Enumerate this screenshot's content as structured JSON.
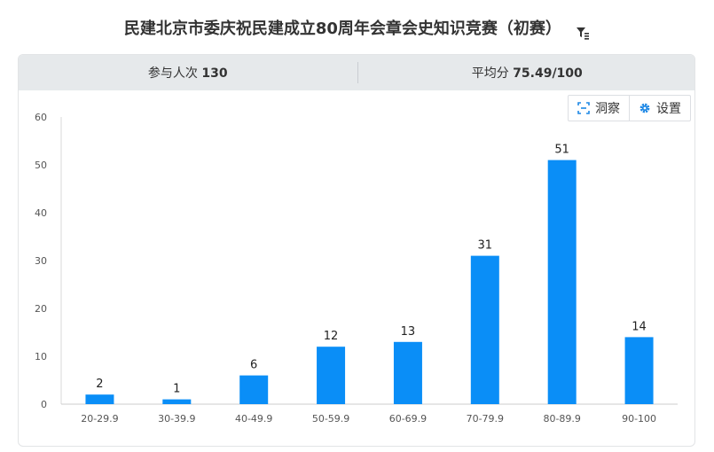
{
  "header": {
    "title": "民建北京市委庆祝民建成立80周年会章会史知识竞赛（初赛）",
    "filter_icon": "filter-icon"
  },
  "stats": {
    "participants_label": "参与人次",
    "participants_value": "130",
    "average_label": "平均分",
    "average_value": "75.49/100"
  },
  "toolbar": {
    "insight_label": "洞察",
    "settings_label": "设置"
  },
  "colors": {
    "bar": "#0a8ef7",
    "insight_icon": "#1e88e5",
    "settings_icon": "#1e88e5"
  },
  "chart_data": {
    "type": "bar",
    "categories": [
      "20-29.9",
      "30-39.9",
      "40-49.9",
      "50-59.9",
      "60-69.9",
      "70-79.9",
      "80-89.9",
      "90-100"
    ],
    "values": [
      2,
      1,
      6,
      12,
      13,
      31,
      51,
      14
    ],
    "data_labels": [
      "2",
      "1",
      "6",
      "12",
      "13",
      "31",
      "51",
      "14"
    ],
    "ylim": [
      0,
      60
    ],
    "yticks": [
      0,
      10,
      20,
      30,
      40,
      50,
      60
    ],
    "ytick_labels": [
      "0",
      "10",
      "20",
      "30",
      "40",
      "50",
      "60"
    ],
    "title": "",
    "xlabel": "",
    "ylabel": "",
    "grid": false,
    "legend": "none"
  }
}
